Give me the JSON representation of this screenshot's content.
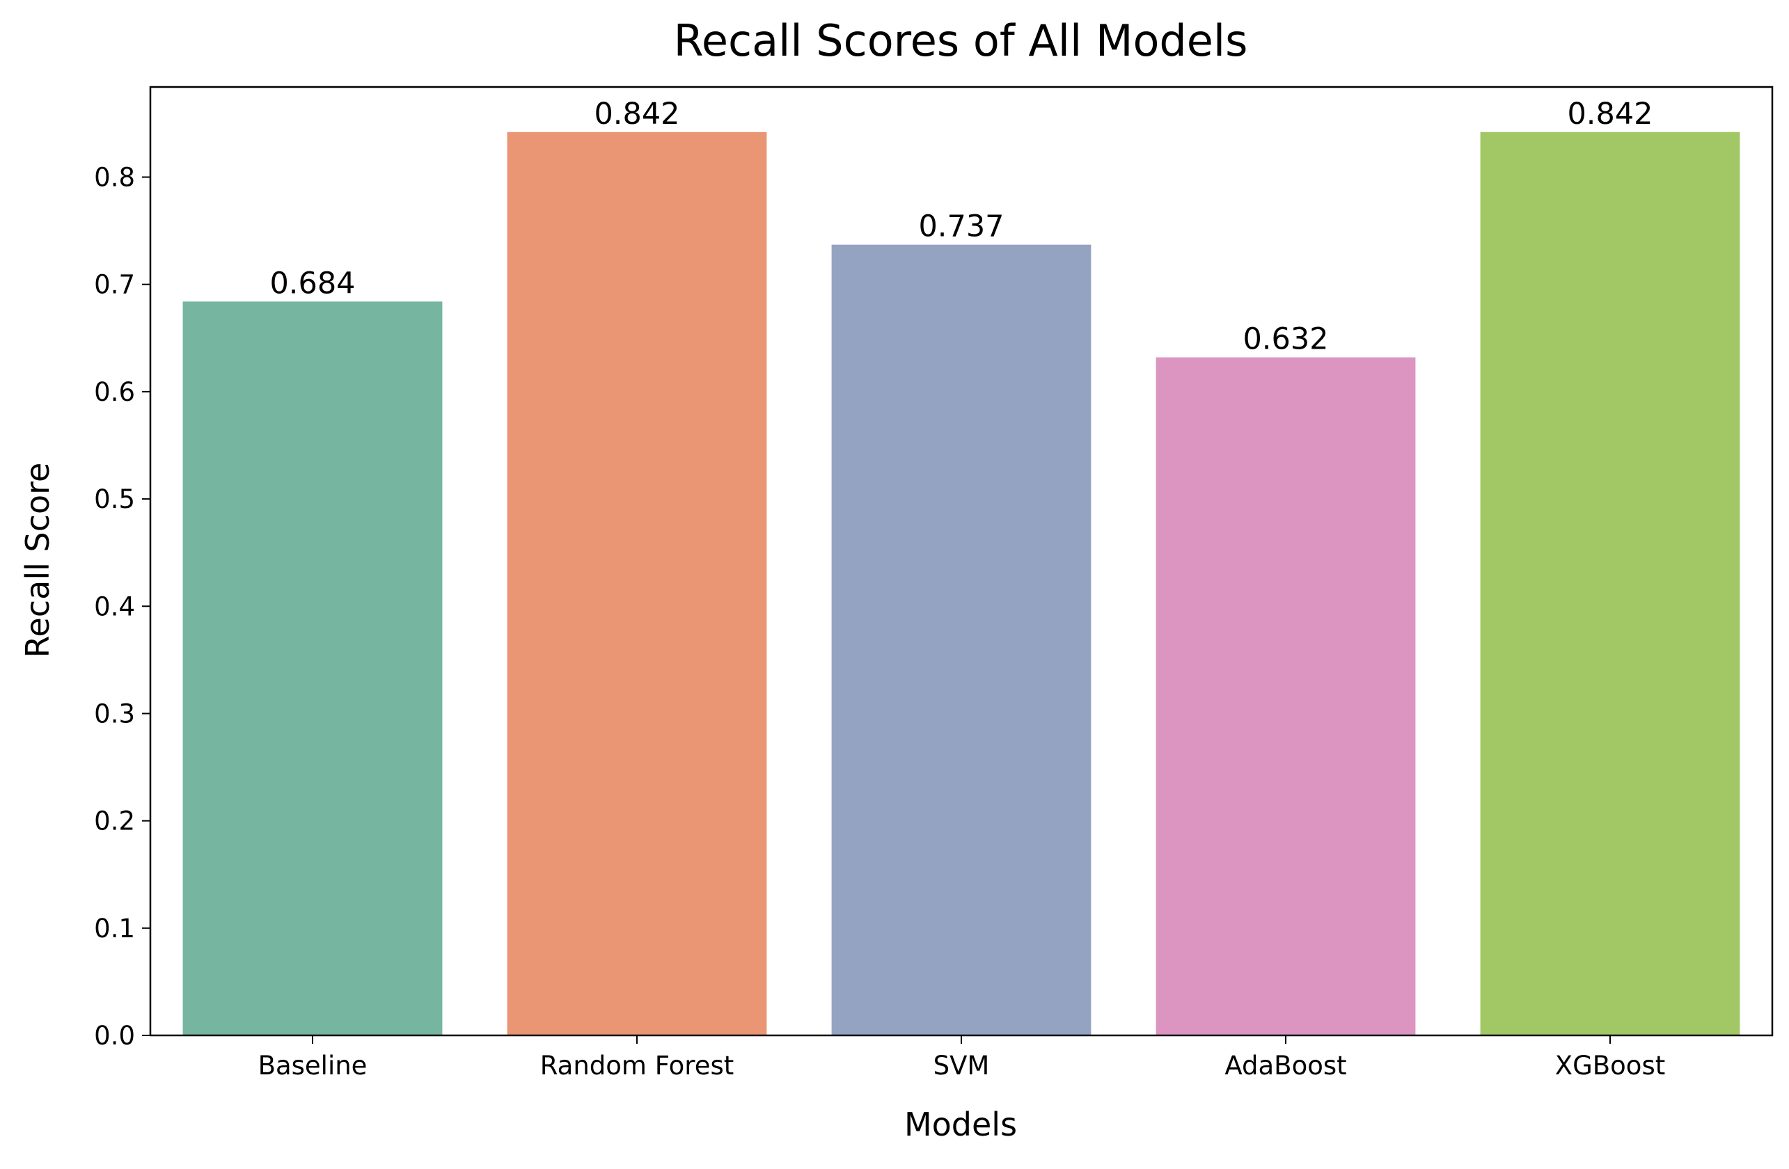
{
  "chart_data": {
    "type": "bar",
    "title": "Recall Scores of All Models",
    "xlabel": "Models",
    "ylabel": "Recall Score",
    "categories": [
      "Baseline",
      "Random Forest",
      "SVM",
      "AdaBoost",
      "XGBoost"
    ],
    "values": [
      0.684,
      0.842,
      0.737,
      0.632,
      0.842
    ],
    "value_labels": [
      "0.684",
      "0.842",
      "0.737",
      "0.632",
      "0.842"
    ],
    "colors": [
      "#76b5a0",
      "#ea9674",
      "#94a3c2",
      "#dc95c0",
      "#a2c866"
    ],
    "ylim": [
      0,
      0.884
    ],
    "yticks": [
      0.0,
      0.1,
      0.2,
      0.3,
      0.4,
      0.5,
      0.6,
      0.7,
      0.8
    ],
    "ytick_labels": [
      "0.0",
      "0.1",
      "0.2",
      "0.3",
      "0.4",
      "0.5",
      "0.6",
      "0.7",
      "0.8"
    ],
    "grid": false,
    "legend": "none"
  }
}
